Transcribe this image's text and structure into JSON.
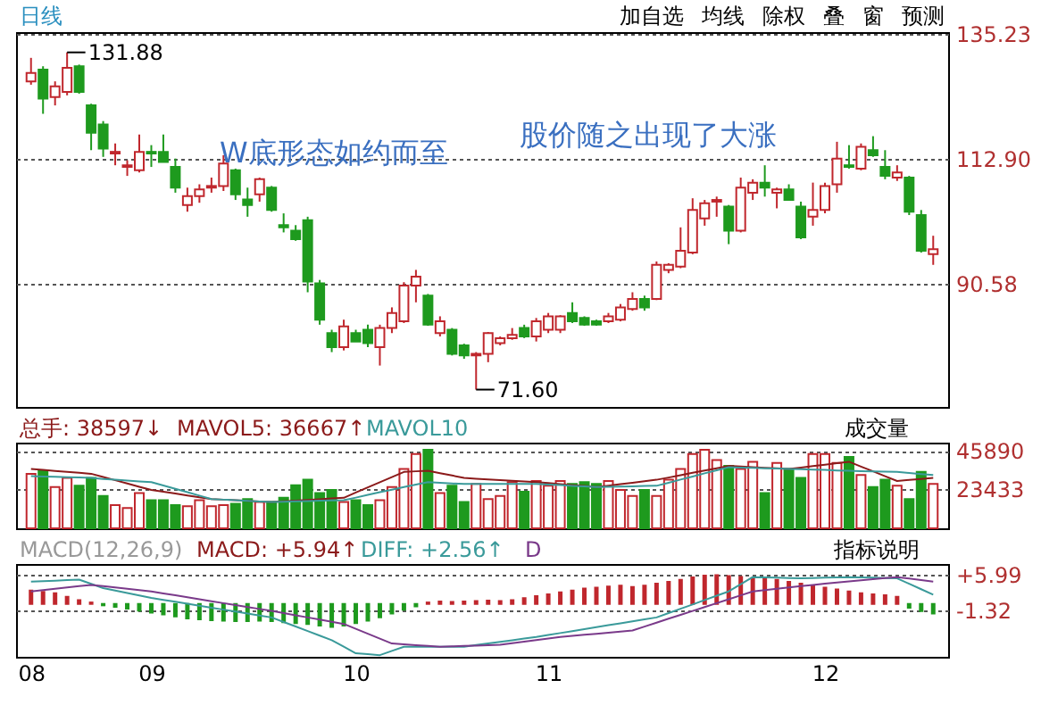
{
  "chart_data": [
    {
      "type": "candlestick",
      "title": "日线",
      "categories": [
        "08",
        null,
        null,
        null,
        null,
        null,
        null,
        null,
        null,
        null,
        "09",
        null,
        null,
        null,
        null,
        null,
        null,
        null,
        null,
        null,
        null,
        null,
        null,
        null,
        null,
        null,
        null,
        "10",
        null,
        null,
        null,
        null,
        null,
        null,
        null,
        null,
        null,
        null,
        null,
        null,
        null,
        null,
        null,
        "11",
        null,
        null,
        null,
        null,
        null,
        null,
        null,
        null,
        null,
        null,
        null,
        null,
        null,
        null,
        null,
        null,
        null,
        null,
        null,
        null,
        null,
        null,
        "12",
        null,
        null,
        null,
        null,
        null,
        null,
        null,
        null,
        null
      ],
      "ohlc": [
        [
          126.7,
          130.9,
          126.1,
          128.2
        ],
        [
          128.8,
          129.4,
          120.9,
          123.6
        ],
        [
          123.9,
          126.7,
          122.4,
          125.8
        ],
        [
          124.8,
          131.88,
          124.2,
          129.1
        ],
        [
          129.4,
          129.7,
          124.5,
          124.8
        ],
        [
          122.4,
          122.7,
          114.4,
          117.5
        ],
        [
          119.0,
          119.6,
          113.2,
          114.7
        ],
        [
          113.8,
          115.6,
          111.7,
          114.1
        ],
        [
          111.4,
          112.6,
          109.8,
          111.7
        ],
        [
          110.8,
          117.2,
          110.4,
          114.1
        ],
        [
          114.1,
          115.3,
          111.4,
          113.8
        ],
        [
          114.1,
          117.2,
          112.3,
          112.3
        ],
        [
          111.4,
          112.9,
          106.8,
          107.7
        ],
        [
          104.6,
          107.7,
          103.4,
          106.2
        ],
        [
          106.2,
          108.3,
          105.0,
          107.4
        ],
        [
          107.7,
          109.5,
          106.8,
          108.0
        ],
        [
          108.0,
          113.5,
          107.1,
          112.0
        ],
        [
          110.8,
          111.1,
          105.5,
          106.5
        ],
        [
          105.6,
          107.7,
          102.5,
          104.6
        ],
        [
          106.5,
          109.5,
          105.2,
          109.2
        ],
        [
          107.7,
          108.0,
          103.4,
          103.7
        ],
        [
          101.0,
          103.1,
          99.7,
          100.6
        ],
        [
          100.0,
          101.0,
          98.2,
          98.5
        ],
        [
          101.9,
          102.5,
          89.0,
          90.9
        ],
        [
          90.6,
          91.2,
          83.2,
          84.1
        ],
        [
          81.7,
          82.3,
          78.3,
          79.2
        ],
        [
          79.2,
          84.1,
          78.6,
          82.9
        ],
        [
          81.7,
          82.3,
          80.2,
          80.2
        ],
        [
          82.3,
          83.2,
          79.2,
          79.9
        ],
        [
          79.2,
          83.2,
          75.9,
          82.6
        ],
        [
          82.6,
          86.3,
          81.7,
          85.3
        ],
        [
          83.8,
          90.8,
          83.5,
          90.2
        ],
        [
          90.2,
          93.0,
          87.2,
          91.8
        ],
        [
          88.4,
          88.7,
          83.0,
          83.2
        ],
        [
          81.7,
          84.7,
          81.1,
          83.8
        ],
        [
          82.3,
          82.6,
          77.7,
          78.0
        ],
        [
          79.5,
          79.8,
          77.1,
          77.7
        ],
        [
          77.7,
          78.3,
          71.6,
          78.0
        ],
        [
          78.0,
          81.9,
          76.5,
          81.7
        ],
        [
          79.9,
          81.1,
          79.5,
          80.8
        ],
        [
          80.8,
          82.6,
          80.5,
          81.4
        ],
        [
          82.6,
          83.2,
          80.8,
          81.1
        ],
        [
          81.1,
          84.4,
          80.2,
          83.8
        ],
        [
          82.3,
          85.3,
          81.7,
          84.7
        ],
        [
          82.3,
          84.9,
          81.7,
          84.7
        ],
        [
          85.3,
          87.2,
          83.5,
          83.8
        ],
        [
          84.4,
          84.7,
          83.0,
          83.2
        ],
        [
          83.8,
          84.1,
          83.0,
          83.2
        ],
        [
          83.8,
          85.3,
          83.5,
          84.7
        ],
        [
          84.1,
          86.9,
          83.8,
          86.3
        ],
        [
          86.0,
          89.0,
          85.7,
          87.8
        ],
        [
          87.8,
          88.4,
          85.7,
          86.3
        ],
        [
          87.8,
          94.5,
          87.6,
          93.9
        ],
        [
          93.0,
          94.2,
          92.4,
          93.9
        ],
        [
          93.6,
          100.6,
          93.3,
          96.4
        ],
        [
          96.1,
          105.8,
          95.8,
          103.7
        ],
        [
          102.2,
          105.5,
          100.9,
          104.9
        ],
        [
          105.2,
          106.1,
          102.5,
          105.5
        ],
        [
          104.3,
          104.6,
          97.6,
          100.0
        ],
        [
          100.0,
          109.5,
          99.7,
          107.7
        ],
        [
          106.8,
          109.2,
          105.5,
          108.6
        ],
        [
          108.6,
          111.7,
          106.1,
          107.7
        ],
        [
          106.8,
          107.7,
          104.0,
          107.4
        ],
        [
          107.4,
          108.3,
          105.5,
          105.5
        ],
        [
          104.3,
          105.2,
          98.5,
          98.8
        ],
        [
          102.5,
          108.6,
          100.9,
          103.7
        ],
        [
          103.7,
          108.6,
          103.1,
          108.0
        ],
        [
          108.3,
          115.9,
          106.8,
          112.9
        ],
        [
          111.7,
          115.3,
          111.1,
          111.4
        ],
        [
          111.1,
          115.6,
          110.8,
          115.0
        ],
        [
          114.4,
          116.9,
          113.2,
          113.5
        ],
        [
          111.4,
          114.4,
          109.2,
          109.8
        ],
        [
          109.5,
          111.7,
          108.9,
          110.4
        ],
        [
          109.5,
          109.8,
          102.8,
          103.4
        ],
        [
          102.8,
          103.7,
          96.1,
          96.4
        ],
        [
          95.8,
          99.1,
          93.9,
          96.7
        ]
      ],
      "colors": [
        "#c0272d",
        "#1e9a1e",
        "#c0272d",
        "#c0272d",
        "#1e9a1e",
        "#1e9a1e",
        "#1e9a1e",
        "#c0272d",
        "#c0272d",
        "#c0272d",
        "#1e9a1e",
        "#1e9a1e",
        "#1e9a1e",
        "#c0272d",
        "#c0272d",
        "#c0272d",
        "#c0272d",
        "#1e9a1e",
        "#1e9a1e",
        "#c0272d",
        "#1e9a1e",
        "#1e9a1e",
        "#1e9a1e",
        "#1e9a1e",
        "#1e9a1e",
        "#1e9a1e",
        "#c0272d",
        "#1e9a1e",
        "#1e9a1e",
        "#c0272d",
        "#c0272d",
        "#c0272d",
        "#c0272d",
        "#1e9a1e",
        "#c0272d",
        "#1e9a1e",
        "#1e9a1e",
        "#c0272d",
        "#c0272d",
        "#c0272d",
        "#c0272d",
        "#1e9a1e",
        "#c0272d",
        "#c0272d",
        "#c0272d",
        "#1e9a1e",
        "#1e9a1e",
        "#1e9a1e",
        "#c0272d",
        "#c0272d",
        "#c0272d",
        "#1e9a1e",
        "#c0272d",
        "#c0272d",
        "#c0272d",
        "#c0272d",
        "#c0272d",
        "#c0272d",
        "#1e9a1e",
        "#c0272d",
        "#c0272d",
        "#1e9a1e",
        "#c0272d",
        "#1e9a1e",
        "#1e9a1e",
        "#c0272d",
        "#c0272d",
        "#c0272d",
        "#1e9a1e",
        "#c0272d",
        "#1e9a1e",
        "#1e9a1e",
        "#c0272d",
        "#1e9a1e",
        "#1e9a1e",
        "#c0272d"
      ],
      "ylim": [
        68.5,
        135.5
      ],
      "yticks": [
        90.58,
        {
          "value": 112.9,
          "label": "112.90"
        },
        135.23
      ],
      "grid": "y",
      "tick_labels": "y",
      "annotations": [
        "加自选",
        "均线",
        "除权",
        "叠",
        "窗",
        "预测",
        "W底形态如约而至",
        "股价随之出现了大涨",
        "131.88",
        "71.60"
      ]
    },
    {
      "type": "bar",
      "ylim": [
        0,
        50800
      ],
      "yticks": [
        23433,
        45890
      ],
      "grid": "y",
      "tick_labels": "y",
      "categories": [
        "08",
        null,
        null,
        null,
        null,
        null,
        null,
        null,
        null,
        null,
        "09",
        null,
        null,
        null,
        null,
        null,
        null,
        null,
        null,
        null,
        null,
        null,
        null,
        null,
        null,
        null,
        null,
        "10",
        null,
        null,
        null,
        null,
        null,
        null,
        null,
        null,
        null,
        null,
        null,
        null,
        null,
        null,
        null,
        "11",
        null,
        null,
        null,
        null,
        null,
        null,
        null,
        null,
        null,
        null,
        null,
        null,
        null,
        null,
        null,
        null,
        null,
        null,
        null,
        null,
        null,
        null,
        "12",
        null,
        null,
        null,
        null,
        null,
        null,
        null,
        null,
        null
      ],
      "annotations": [
        "总手: 38597↓",
        "MAVOL5: 36667↑",
        "MAVOL10",
        "成交量"
      ],
      "series": [
        {
          "type": "bar",
          "values": [
            32340,
            34130,
            24500,
            29850,
            25210,
            29850,
            19150,
            13800,
            12020,
            20930,
            16660,
            16660,
            13800,
            13090,
            16660,
            13090,
            13800,
            14520,
            17370,
            15590,
            15590,
            18080,
            25570,
            28780,
            20930,
            22720,
            15590,
            16660,
            13800,
            16660,
            24500,
            35200,
            44110,
            46600,
            20930,
            25210,
            15590,
            26280,
            17370,
            19150,
            27350,
            21650,
            28070,
            25210,
            28070,
            26280,
            27350,
            26280,
            28070,
            22720,
            19150,
            22720,
            19150,
            28780,
            35200,
            44110,
            46600,
            40540,
            36980,
            35200,
            39470,
            20930,
            38760,
            35200,
            29850,
            44110,
            44110,
            38760,
            42320,
            31630,
            24500,
            28780,
            25210,
            17370,
            33410,
            26280
          ],
          "colors": [
            "#c0272d",
            "#1e9a1e",
            "#c0272d",
            "#c0272d",
            "#1e9a1e",
            "#1e9a1e",
            "#1e9a1e",
            "#c0272d",
            "#c0272d",
            "#c0272d",
            "#1e9a1e",
            "#1e9a1e",
            "#1e9a1e",
            "#c0272d",
            "#c0272d",
            "#c0272d",
            "#c0272d",
            "#1e9a1e",
            "#1e9a1e",
            "#c0272d",
            "#1e9a1e",
            "#1e9a1e",
            "#1e9a1e",
            "#1e9a1e",
            "#1e9a1e",
            "#1e9a1e",
            "#c0272d",
            "#1e9a1e",
            "#1e9a1e",
            "#c0272d",
            "#c0272d",
            "#c0272d",
            "#c0272d",
            "#1e9a1e",
            "#c0272d",
            "#1e9a1e",
            "#1e9a1e",
            "#c0272d",
            "#c0272d",
            "#c0272d",
            "#c0272d",
            "#1e9a1e",
            "#c0272d",
            "#c0272d",
            "#c0272d",
            "#1e9a1e",
            "#1e9a1e",
            "#1e9a1e",
            "#c0272d",
            "#c0272d",
            "#c0272d",
            "#1e9a1e",
            "#c0272d",
            "#c0272d",
            "#c0272d",
            "#c0272d",
            "#c0272d",
            "#c0272d",
            "#1e9a1e",
            "#c0272d",
            "#c0272d",
            "#1e9a1e",
            "#c0272d",
            "#1e9a1e",
            "#1e9a1e",
            "#c0272d",
            "#c0272d",
            "#c0272d",
            "#1e9a1e",
            "#c0272d",
            "#1e9a1e",
            "#1e9a1e",
            "#c0272d",
            "#1e9a1e",
            "#1e9a1e",
            "#c0272d"
          ]
        },
        {
          "type": "line",
          "color": "#8b1a1a",
          "values": [
            35200,
            34600,
            34000,
            33500,
            32900,
            32340,
            30400,
            28500,
            26600,
            24600,
            22720,
            21650,
            20600,
            19500,
            18400,
            17370,
            17000,
            16700,
            16300,
            15900,
            15590,
            16000,
            16400,
            16800,
            17200,
            17700,
            18080,
            21200,
            24300,
            27300,
            30400,
            33410,
            33800,
            34130,
            32700,
            31300,
            29850,
            29400,
            29000,
            28600,
            28200,
            27800,
            27350,
            26800,
            26200,
            25600,
            25100,
            24500,
            25300,
            26200,
            27000,
            27900,
            28780,
            30100,
            31500,
            32900,
            34300,
            35600,
            36980,
            36600,
            36300,
            35900,
            35600,
            35200,
            36000,
            36900,
            37700,
            38600,
            39470,
            36600,
            33800,
            30900,
            28070,
            28700,
            29300,
            29850
          ]
        },
        {
          "type": "line",
          "color": "#3a9a9a",
          "values": [
            30920,
            30700,
            30500,
            30300,
            30100,
            29850,
            29300,
            28800,
            28300,
            27800,
            27350,
            25400,
            23400,
            21400,
            19400,
            17370,
            17000,
            16700,
            16300,
            15900,
            15590,
            15800,
            16000,
            16200,
            16400,
            16500,
            16660,
            18200,
            19800,
            21400,
            22900,
            24500,
            25900,
            27350,
            27000,
            26600,
            26280,
            26280,
            26280,
            26280,
            26280,
            26280,
            26280,
            25900,
            25600,
            25200,
            24900,
            24500,
            24600,
            24800,
            24900,
            25100,
            25210,
            27000,
            28900,
            30700,
            32600,
            34400,
            36260,
            36000,
            35800,
            35600,
            35400,
            35200,
            35000,
            34800,
            34600,
            34300,
            34130,
            33900,
            33800,
            33600,
            33410,
            32800,
            32200,
            31630
          ]
        }
      ]
    },
    {
      "type": "bar",
      "ylim": [
        -11,
        8.3
      ],
      "yticks": [
        {
          "value": 5.99,
          "label": "+5.99"
        },
        -1.32
      ],
      "grid": "y",
      "categories": [
        "08",
        null,
        null,
        null,
        null,
        null,
        null,
        null,
        null,
        null,
        "09",
        null,
        null,
        null,
        null,
        null,
        null,
        null,
        null,
        null,
        null,
        null,
        null,
        null,
        null,
        null,
        null,
        "10",
        null,
        null,
        null,
        null,
        null,
        null,
        null,
        null,
        null,
        null,
        null,
        null,
        null,
        null,
        null,
        "11",
        null,
        null,
        null,
        null,
        null,
        null,
        null,
        null,
        null,
        null,
        null,
        null,
        null,
        null,
        null,
        null,
        null,
        null,
        null,
        null,
        null,
        null,
        "12",
        null,
        null,
        null,
        null,
        null,
        null,
        null,
        null,
        null
      ],
      "annotations": [
        "MACD(12,26,9)",
        "MACD: +5.94↑",
        "DIFF: +2.56↑",
        "D",
        "指标说明"
      ],
      "series": [
        {
          "type": "bar",
          "values": [
            2.8,
            2.5,
            2.2,
            1.5,
            0.8,
            0.3,
            -0.3,
            -0.6,
            -1.0,
            -1.4,
            -1.8,
            -2.2,
            -2.6,
            -3.0,
            -3.2,
            -3.4,
            -3.5,
            -3.6,
            -3.6,
            -3.5,
            -3.6,
            -3.8,
            -4.0,
            -4.2,
            -4.5,
            -4.8,
            -4.5,
            -4.0,
            -3.5,
            -2.8,
            -2.0,
            -1.2,
            -0.5,
            0.3,
            0.5,
            0.4,
            0.5,
            0.6,
            0.7,
            0.6,
            0.8,
            1.2,
            1.6,
            2.0,
            2.4,
            2.8,
            3.2,
            3.4,
            3.6,
            3.8,
            3.5,
            3.8,
            4.2,
            4.6,
            5.0,
            5.5,
            5.9,
            6.0,
            5.8,
            5.6,
            5.4,
            5.2,
            5.0,
            4.6,
            4.2,
            3.8,
            3.4,
            3.0,
            2.6,
            2.2,
            2.0,
            1.8,
            1.5,
            -0.8,
            -1.5,
            -2.0
          ],
          "colors": [
            "#c0272d",
            "#c0272d",
            "#c0272d",
            "#c0272d",
            "#c0272d",
            "#c0272d",
            "#1e9a1e",
            "#1e9a1e",
            "#1e9a1e",
            "#1e9a1e",
            "#1e9a1e",
            "#1e9a1e",
            "#1e9a1e",
            "#1e9a1e",
            "#1e9a1e",
            "#1e9a1e",
            "#1e9a1e",
            "#1e9a1e",
            "#1e9a1e",
            "#1e9a1e",
            "#1e9a1e",
            "#1e9a1e",
            "#1e9a1e",
            "#1e9a1e",
            "#1e9a1e",
            "#1e9a1e",
            "#1e9a1e",
            "#1e9a1e",
            "#1e9a1e",
            "#1e9a1e",
            "#1e9a1e",
            "#1e9a1e",
            "#1e9a1e",
            "#c0272d",
            "#c0272d",
            "#c0272d",
            "#c0272d",
            "#c0272d",
            "#c0272d",
            "#c0272d",
            "#c0272d",
            "#c0272d",
            "#c0272d",
            "#c0272d",
            "#c0272d",
            "#c0272d",
            "#c0272d",
            "#c0272d",
            "#c0272d",
            "#c0272d",
            "#c0272d",
            "#c0272d",
            "#c0272d",
            "#c0272d",
            "#c0272d",
            "#c0272d",
            "#c0272d",
            "#c0272d",
            "#c0272d",
            "#c0272d",
            "#c0272d",
            "#c0272d",
            "#c0272d",
            "#c0272d",
            "#c0272d",
            "#c0272d",
            "#c0272d",
            "#c0272d",
            "#c0272d",
            "#c0272d",
            "#c0272d",
            "#c0272d",
            "#c0272d",
            "#1e9a1e",
            "#1e9a1e",
            "#1e9a1e"
          ]
        },
        {
          "type": "line",
          "color": "#3a9a9a",
          "values": [
            4.64,
            4.74,
            4.84,
            4.94,
            5.04,
            4.16,
            3.28,
            2.77,
            2.27,
            1.76,
            1.25,
            0.84,
            0.44,
            0.03,
            -0.37,
            -0.78,
            -1.19,
            -1.59,
            -2.0,
            -2.4,
            -2.81,
            -3.76,
            -4.7,
            -5.65,
            -6.6,
            -7.55,
            -8.9,
            -10.26,
            -10.46,
            -10.66,
            -9.78,
            -8.9,
            -8.9,
            -8.9,
            -8.9,
            -8.9,
            -8.9,
            -8.56,
            -8.22,
            -7.88,
            -7.55,
            -7.21,
            -6.87,
            -6.46,
            -6.06,
            -5.65,
            -5.25,
            -4.84,
            -4.43,
            -4.03,
            -3.62,
            -3.22,
            -2.81,
            -1.91,
            -1.01,
            -0.11,
            0.8,
            1.7,
            2.6,
            4.09,
            5.58,
            5.51,
            5.45,
            5.38,
            5.31,
            5.38,
            5.45,
            5.51,
            5.58,
            5.51,
            5.45,
            5.38,
            5.31,
            4.18,
            3.06,
            1.93
          ]
        },
        {
          "type": "line",
          "color": "#7a3a8a",
          "values": [
            2.6,
            2.87,
            3.14,
            3.42,
            3.69,
            3.96,
            3.69,
            3.42,
            3.14,
            2.87,
            2.6,
            2.19,
            1.79,
            1.38,
            0.98,
            0.57,
            0.16,
            -0.24,
            -0.65,
            -1.05,
            -1.46,
            -1.91,
            -2.36,
            -2.81,
            -3.27,
            -3.72,
            -4.17,
            -5.19,
            -6.2,
            -7.22,
            -8.23,
            -8.4,
            -8.57,
            -8.73,
            -8.9,
            -8.82,
            -8.74,
            -8.66,
            -8.58,
            -8.5,
            -8.17,
            -7.85,
            -7.52,
            -7.2,
            -6.87,
            -6.65,
            -6.42,
            -6.2,
            -5.97,
            -5.75,
            -5.52,
            -4.71,
            -3.9,
            -3.08,
            -2.27,
            -1.46,
            -0.65,
            0.16,
            0.98,
            1.79,
            2.6,
            2.87,
            3.14,
            3.42,
            3.69,
            3.96,
            4.23,
            4.46,
            4.68,
            4.91,
            5.13,
            5.36,
            5.58,
            5.27,
            4.95,
            4.64
          ]
        }
      ]
    }
  ]
}
